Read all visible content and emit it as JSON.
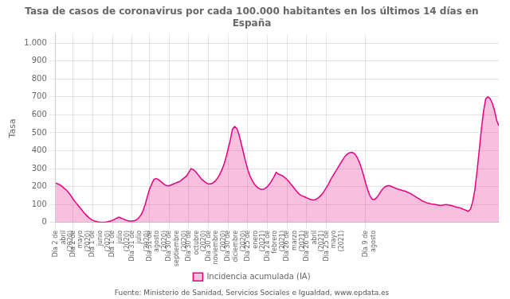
{
  "chart_data": {
    "type": "area",
    "title": "Tasa de casos de coronavirus por cada 100.000 habitantes en los últimos 14 días en\nEspaña",
    "ylabel": "Tasa",
    "annotations": [
      "Fuente: Ministerio de Sanidad, Servicios Sociales e Igualdad, www.epdata.es"
    ],
    "ylim": [
      0,
      1050
    ],
    "yticks": [
      0,
      100,
      200,
      300,
      400,
      500,
      600,
      700,
      800,
      900,
      {
        "value": 1000,
        "label": "1.000"
      }
    ],
    "grid": true,
    "legend": "bottom",
    "categories": [
      "Día 2 de\nabril\n(2020)",
      null,
      null,
      null,
      null,
      null,
      null,
      null,
      "Día 2 de\nmayo\n(2020)",
      null,
      null,
      null,
      null,
      null,
      null,
      null,
      null,
      "Día 1 de\njunio\n(2020)",
      null,
      null,
      null,
      null,
      null,
      null,
      null,
      null,
      "Día 1 de\njulio\n(2020)",
      null,
      null,
      null,
      null,
      null,
      null,
      null,
      null,
      "Día 31 de\njulio\n(2020)",
      null,
      null,
      null,
      null,
      null,
      null,
      null,
      "Día 31 de\nagosto\n(2020)",
      null,
      null,
      null,
      null,
      null,
      null,
      null,
      null,
      "Día 30 de\nseptiembre\n(2020)",
      null,
      null,
      null,
      null,
      null,
      null,
      null,
      null,
      "Día 30 de\noctubre\n(2020)",
      null,
      null,
      null,
      null,
      null,
      null,
      null,
      null,
      "Día 30 de\nnoviembre\n(2020)",
      null,
      null,
      null,
      null,
      null,
      null,
      null,
      null,
      "Día 30 de\ndiciembre\n(2020)",
      null,
      null,
      null,
      null,
      null,
      null,
      null,
      null,
      "Día 25 de\nenero\n(2021)",
      null,
      null,
      null,
      null,
      null,
      null,
      null,
      null,
      "Día 24 de\nfebrero\n(2021)",
      null,
      null,
      null,
      null,
      null,
      null,
      null,
      null,
      "Día 26 de\nmarzo\n(2021)",
      null,
      null,
      null,
      null,
      null,
      null,
      null,
      null,
      "Día 26 de\nabril\n(2021)",
      null,
      null,
      null,
      null,
      null,
      null,
      null,
      null,
      "Día 25 de\nmayo\n(2021)",
      null,
      null,
      null,
      null,
      null,
      null,
      null,
      null,
      null,
      null,
      null,
      null,
      null,
      null,
      null,
      null,
      null,
      "Día 9 de\nagosto",
      null,
      null,
      null,
      null,
      null,
      null,
      null,
      null,
      null,
      null,
      null,
      null,
      null,
      null,
      null,
      null,
      null,
      null,
      null,
      null,
      null,
      null,
      null,
      null,
      null,
      null,
      null,
      null,
      null,
      null,
      null,
      null,
      null,
      null,
      null,
      null,
      null,
      null,
      null,
      null,
      null,
      null,
      null,
      null,
      null,
      null,
      null,
      null,
      null,
      null,
      null,
      null,
      null,
      null,
      null,
      null,
      null,
      null,
      null,
      null,
      null
    ],
    "series": [
      {
        "name": "Incidencia acumulada (IA)",
        "color": "#e6007e",
        "values": [
          220,
          215,
          210,
          200,
          190,
          180,
          165,
          150,
          130,
          115,
          100,
          85,
          70,
          55,
          42,
          30,
          20,
          12,
          8,
          5,
          3,
          2,
          2,
          3,
          5,
          8,
          12,
          18,
          25,
          30,
          25,
          20,
          15,
          10,
          8,
          8,
          10,
          15,
          25,
          40,
          65,
          100,
          145,
          185,
          215,
          240,
          245,
          240,
          230,
          220,
          210,
          205,
          205,
          210,
          215,
          220,
          225,
          230,
          240,
          250,
          260,
          280,
          300,
          295,
          285,
          270,
          255,
          240,
          230,
          220,
          215,
          215,
          220,
          230,
          245,
          265,
          290,
          320,
          360,
          410,
          460,
          520,
          535,
          525,
          490,
          440,
          390,
          340,
          295,
          260,
          235,
          215,
          200,
          190,
          185,
          185,
          190,
          200,
          215,
          235,
          255,
          280,
          270,
          265,
          260,
          250,
          240,
          225,
          210,
          195,
          180,
          165,
          155,
          148,
          143,
          138,
          132,
          128,
          126,
          128,
          135,
          145,
          158,
          175,
          195,
          215,
          240,
          260,
          280,
          300,
          320,
          340,
          360,
          375,
          385,
          390,
          390,
          382,
          365,
          340,
          305,
          265,
          220,
          180,
          148,
          130,
          128,
          138,
          155,
          175,
          190,
          200,
          205,
          205,
          200,
          195,
          190,
          185,
          182,
          178,
          175,
          170,
          165,
          158,
          150,
          143,
          135,
          128,
          120,
          115,
          110,
          107,
          104,
          102,
          100,
          98,
          96,
          97,
          99,
          100,
          98,
          96,
          92,
          88,
          85,
          82,
          78,
          73,
          68,
          62,
          75,
          115,
          180,
          285,
          400,
          520,
          620,
          690,
          700,
          690,
          665,
          625,
          570,
          540
        ]
      }
    ]
  }
}
